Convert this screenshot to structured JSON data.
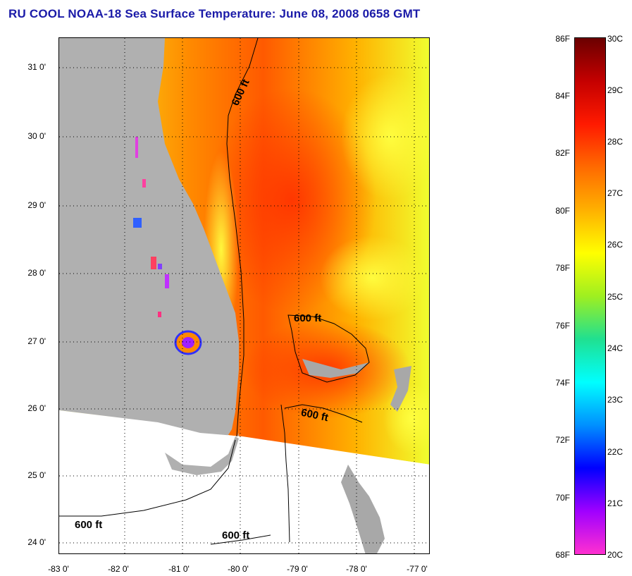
{
  "title": "RU COOL  NOAA-18  Sea Surface Temperature:  June 08, 2008 0658 GMT",
  "map": {
    "lon_range": [
      -83,
      -76.8
    ],
    "lat_range": [
      23.85,
      31.45
    ],
    "lat_ticks": [
      "31 0'",
      "30 0'",
      "29 0'",
      "28 0'",
      "27 0'",
      "26 0'",
      "25 0'",
      "24 0'"
    ],
    "lon_ticks": [
      "-83 0'",
      "-82 0'",
      "-81 0'",
      "-80 0'",
      "-79 0'",
      "-78 0'",
      "-77 0'"
    ],
    "contour_labels": [
      "600 ft",
      "600 ft",
      "600 ft",
      "600 ft",
      "600 ft"
    ],
    "grid": "dotted",
    "colors": {
      "land": "#b0b0b0",
      "no_data": "#ffffff",
      "contour": "#000000"
    }
  },
  "colorbar": {
    "fahrenheit_labels": [
      "86F",
      "84F",
      "82F",
      "80F",
      "78F",
      "76F",
      "74F",
      "72F",
      "70F",
      "68F"
    ],
    "celsius_labels": [
      "30C",
      "29C",
      "28C",
      "27C",
      "26C",
      "25C",
      "24C",
      "23C",
      "22C",
      "21C",
      "20C"
    ],
    "range_c": [
      20,
      30
    ],
    "colors_top_to_bottom": [
      "#6b0000",
      "#c40000",
      "#ff1a00",
      "#ff6a00",
      "#ffb000",
      "#ffff00",
      "#9fef20",
      "#20e090",
      "#00ffff",
      "#0090ff",
      "#0000ff",
      "#a000ff",
      "#ff30d0"
    ]
  }
}
